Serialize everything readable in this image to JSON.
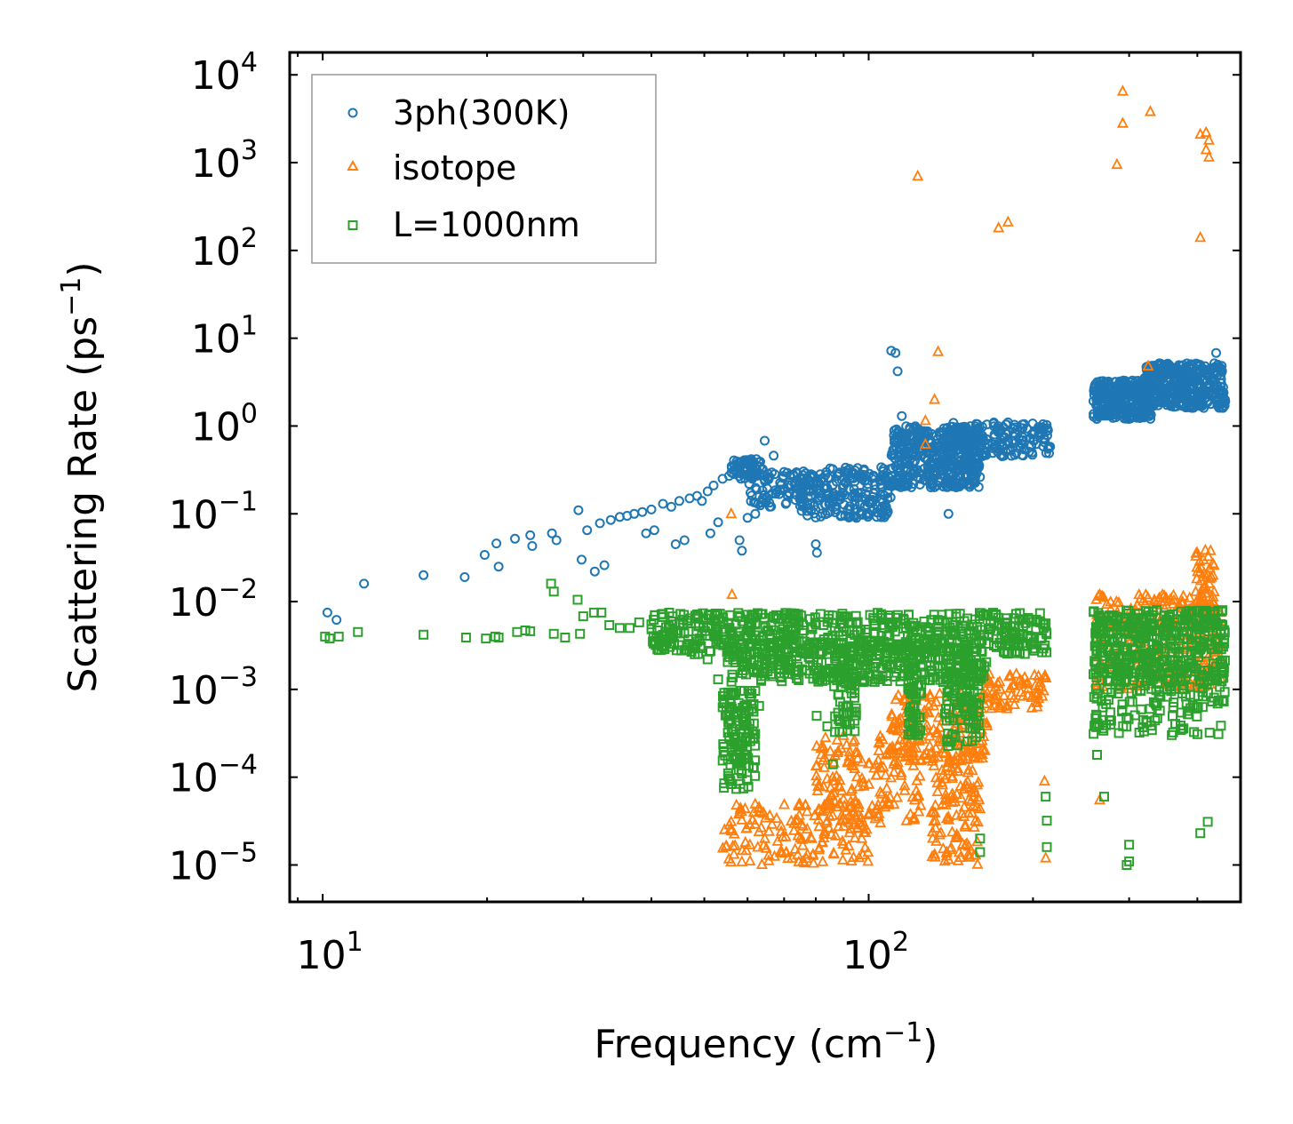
{
  "chart_data": {
    "type": "scatter",
    "title": "",
    "xlabel": "Frequency",
    "xunit_base": "cm",
    "xunit_exp": "−1",
    "ylabel": "Scattering Rate",
    "yunit_base": "ps",
    "yunit_exp": "−1",
    "xscale": "log",
    "yscale": "log",
    "xlim": [
      8.7,
      480
    ],
    "ylim": [
      3.8e-06,
      18000
    ],
    "x_tick_values": [
      10,
      100
    ],
    "x_tick_labels": [
      {
        "base": "10",
        "exp": "1"
      },
      {
        "base": "10",
        "exp": "2"
      }
    ],
    "y_tick_values": [
      1e-05,
      0.0001,
      0.001,
      0.01,
      0.1,
      1,
      10,
      100,
      1000,
      10000
    ],
    "y_tick_labels": [
      {
        "base": "10",
        "exp": "−5"
      },
      {
        "base": "10",
        "exp": "−4"
      },
      {
        "base": "10",
        "exp": "−3"
      },
      {
        "base": "10",
        "exp": "−2"
      },
      {
        "base": "10",
        "exp": "−1"
      },
      {
        "base": "10",
        "exp": "0"
      },
      {
        "base": "10",
        "exp": "1"
      },
      {
        "base": "10",
        "exp": "2"
      },
      {
        "base": "10",
        "exp": "3"
      },
      {
        "base": "10",
        "exp": "4"
      }
    ],
    "legend_position": "top-left",
    "series": [
      {
        "name": "3ph(300K)",
        "marker": "circle",
        "color": "#1f77b4",
        "points": [
          [
            10.2,
            0.0075
          ],
          [
            10.6,
            0.0062
          ],
          [
            11.9,
            0.016
          ],
          [
            15.3,
            0.02
          ],
          [
            18.2,
            0.019
          ],
          [
            19.8,
            0.034
          ],
          [
            20.8,
            0.046
          ],
          [
            21,
            0.025
          ],
          [
            22.5,
            0.052
          ],
          [
            24,
            0.057
          ],
          [
            24.2,
            0.043
          ],
          [
            26.3,
            0.06
          ],
          [
            26.8,
            0.05
          ],
          [
            29.4,
            0.11
          ],
          [
            29.8,
            0.03
          ],
          [
            30.5,
            0.065
          ],
          [
            31.5,
            0.022
          ],
          [
            32.2,
            0.078
          ],
          [
            32.8,
            0.026
          ],
          [
            33.7,
            0.085
          ],
          [
            35,
            0.092
          ],
          [
            36.1,
            0.095
          ],
          [
            37.2,
            0.1
          ],
          [
            38.5,
            0.105
          ],
          [
            39.1,
            0.06
          ],
          [
            40,
            0.112
          ],
          [
            40.5,
            0.065
          ],
          [
            42,
            0.13
          ],
          [
            43.5,
            0.12
          ],
          [
            44.3,
            0.045
          ],
          [
            45,
            0.14
          ],
          [
            46,
            0.05
          ],
          [
            47,
            0.15
          ],
          [
            48.5,
            0.16
          ],
          [
            49.5,
            0.14
          ],
          [
            50.7,
            0.18
          ],
          [
            51.3,
            0.06
          ],
          [
            52,
            0.21
          ],
          [
            53,
            0.08
          ],
          [
            54,
            0.25
          ],
          [
            55.5,
            0.27
          ],
          [
            56.8,
            0.35
          ],
          [
            58,
            0.05
          ],
          [
            58.6,
            0.038
          ],
          [
            60,
            0.09
          ],
          [
            62,
            0.1
          ],
          [
            64.5,
            0.68
          ],
          [
            67,
            0.46
          ],
          [
            70,
            0.3
          ],
          [
            80,
            0.045
          ],
          [
            80.4,
            0.036
          ],
          [
            95,
            0.09
          ],
          [
            108,
            0.1
          ],
          [
            110,
            7.2
          ],
          [
            112,
            6.8
          ],
          [
            113,
            4.2
          ],
          [
            115,
            1.3
          ],
          [
            120,
            0.5
          ],
          [
            130,
            0.2
          ],
          [
            140,
            0.1
          ],
          [
            150,
            0.35
          ],
          [
            160,
            0.55
          ],
          [
            170,
            0.8
          ],
          [
            180,
            1.1
          ],
          [
            190,
            0.95
          ],
          [
            200,
            0.8
          ],
          [
            210,
            0.65
          ],
          [
            215,
            0.58
          ],
          [
            385,
            4.0
          ],
          [
            400,
            3.0
          ],
          [
            420,
            2.5
          ],
          [
            433,
            6.8
          ],
          [
            440,
            4.5
          ],
          [
            445,
            2.0
          ]
        ],
        "bands": [
          {
            "x": [
              56,
              64
            ],
            "y": [
              0.25,
              0.42
            ],
            "n": 70
          },
          {
            "x": [
              60,
              80
            ],
            "y": [
              0.12,
              0.3
            ],
            "n": 90
          },
          {
            "x": [
              75,
              110
            ],
            "y": [
              0.09,
              0.34
            ],
            "n": 220
          },
          {
            "x": [
              110,
              160
            ],
            "y": [
              0.2,
              1.0
            ],
            "n": 420
          },
          {
            "x": [
              140,
              215
            ],
            "y": [
              0.45,
              1.1
            ],
            "n": 180
          },
          {
            "x": [
              258,
              330
            ],
            "y": [
              1.2,
              3.3
            ],
            "n": 330
          },
          {
            "x": [
              320,
              450
            ],
            "y": [
              1.6,
              5.2
            ],
            "n": 380
          }
        ]
      },
      {
        "name": "isotope",
        "marker": "triangle",
        "color": "#ff7f0e",
        "points": [
          [
            123,
            700
          ],
          [
            173,
            180
          ],
          [
            180,
            210
          ],
          [
            285,
            950
          ],
          [
            292,
            6500
          ],
          [
            292,
            2800
          ],
          [
            328,
            3800
          ],
          [
            405,
            140
          ],
          [
            405,
            2100
          ],
          [
            415,
            2200
          ],
          [
            415,
            1400
          ],
          [
            420,
            1800
          ],
          [
            420,
            1150
          ],
          [
            134,
            7.0
          ],
          [
            132,
            2.0
          ],
          [
            127,
            1.15
          ],
          [
            127,
            0.62
          ],
          [
            325,
            4.8
          ],
          [
            56,
            0.1
          ],
          [
            56.2,
            0.012
          ],
          [
            210,
            9e-05
          ],
          [
            211,
            1.2e-05
          ],
          [
            265,
            5.5e-05
          ]
        ],
        "bands": [
          {
            "x": [
              54,
              100
            ],
            "y": [
              1e-05,
              5e-05
            ],
            "n": 160
          },
          {
            "x": [
              80,
              125
            ],
            "y": [
              3e-05,
              0.0003
            ],
            "n": 170
          },
          {
            "x": [
              110,
              165
            ],
            "y": [
              0.00015,
              0.0009
            ],
            "n": 180
          },
          {
            "x": [
              130,
              160
            ],
            "y": [
              1e-05,
              0.0002
            ],
            "n": 120
          },
          {
            "x": [
              160,
              212
            ],
            "y": [
              0.0006,
              0.0015
            ],
            "n": 80
          },
          {
            "x": [
              260,
              445
            ],
            "y": [
              0.001,
              0.012
            ],
            "n": 280
          },
          {
            "x": [
              395,
              430
            ],
            "y": [
              0.005,
              0.04
            ],
            "n": 60
          }
        ]
      },
      {
        "name": "L=1000nm",
        "marker": "square",
        "color": "#2ca02c",
        "points": [
          [
            10.1,
            0.004
          ],
          [
            10.3,
            0.0038
          ],
          [
            10.7,
            0.004
          ],
          [
            11.6,
            0.0045
          ],
          [
            15.3,
            0.0042
          ],
          [
            18.3,
            0.0039
          ],
          [
            19.9,
            0.0038
          ],
          [
            20.7,
            0.004
          ],
          [
            21,
            0.0039
          ],
          [
            22.7,
            0.0045
          ],
          [
            23.5,
            0.0047
          ],
          [
            24,
            0.0046
          ],
          [
            26.2,
            0.016
          ],
          [
            26.5,
            0.013
          ],
          [
            26.5,
            0.0043
          ],
          [
            27.8,
            0.0039
          ],
          [
            29.3,
            0.0105
          ],
          [
            29.6,
            0.0043
          ],
          [
            30,
            0.0068
          ],
          [
            31.4,
            0.0075
          ],
          [
            32.4,
            0.0075
          ],
          [
            33.5,
            0.0054
          ],
          [
            35,
            0.005
          ],
          [
            36.5,
            0.005
          ],
          [
            38,
            0.0058
          ],
          [
            40,
            0.0055
          ],
          [
            42,
            0.0042
          ],
          [
            44,
            0.0033
          ],
          [
            45,
            0.0032
          ],
          [
            46.5,
            0.0028
          ],
          [
            48.5,
            0.0035
          ],
          [
            50.7,
            0.0022
          ],
          [
            53,
            0.0013
          ],
          [
            56,
            0.0027
          ],
          [
            63,
            0.00065
          ],
          [
            80.3,
            0.0005
          ],
          [
            84,
            0.00038
          ],
          [
            86,
            0.00014
          ],
          [
            160,
            2e-05
          ],
          [
            160,
            1.4e-05
          ],
          [
            211,
            6e-05
          ],
          [
            212,
            3.2e-05
          ],
          [
            212,
            1.6e-05
          ],
          [
            300,
            1.7e-05
          ],
          [
            300,
            1.1e-05
          ],
          [
            297,
            1e-05
          ],
          [
            405,
            2.3e-05
          ],
          [
            418,
            3.1e-05
          ],
          [
            262,
            0.00018
          ],
          [
            270,
            6e-05
          ]
        ],
        "bands": [
          {
            "x": [
              40,
              215
            ],
            "y": [
              0.0025,
              0.0075
            ],
            "n": 600
          },
          {
            "x": [
              55,
              165
            ],
            "y": [
              0.0012,
              0.0035
            ],
            "n": 360
          },
          {
            "x": [
              54,
              62
            ],
            "y": [
              7e-05,
              0.001
            ],
            "n": 140
          },
          {
            "x": [
              86,
              95
            ],
            "y": [
              0.0003,
              0.002
            ],
            "n": 50
          },
          {
            "x": [
              118,
              125
            ],
            "y": [
              0.0003,
              0.003
            ],
            "n": 60
          },
          {
            "x": [
              138,
              150
            ],
            "y": [
              0.0002,
              0.002
            ],
            "n": 60
          },
          {
            "x": [
              150,
              160
            ],
            "y": [
              0.00025,
              0.002
            ],
            "n": 50
          },
          {
            "x": [
              258,
              450
            ],
            "y": [
              0.0012,
              0.008
            ],
            "n": 420
          },
          {
            "x": [
              258,
              450
            ],
            "y": [
              0.0003,
              0.0012
            ],
            "n": 120
          }
        ]
      }
    ]
  }
}
